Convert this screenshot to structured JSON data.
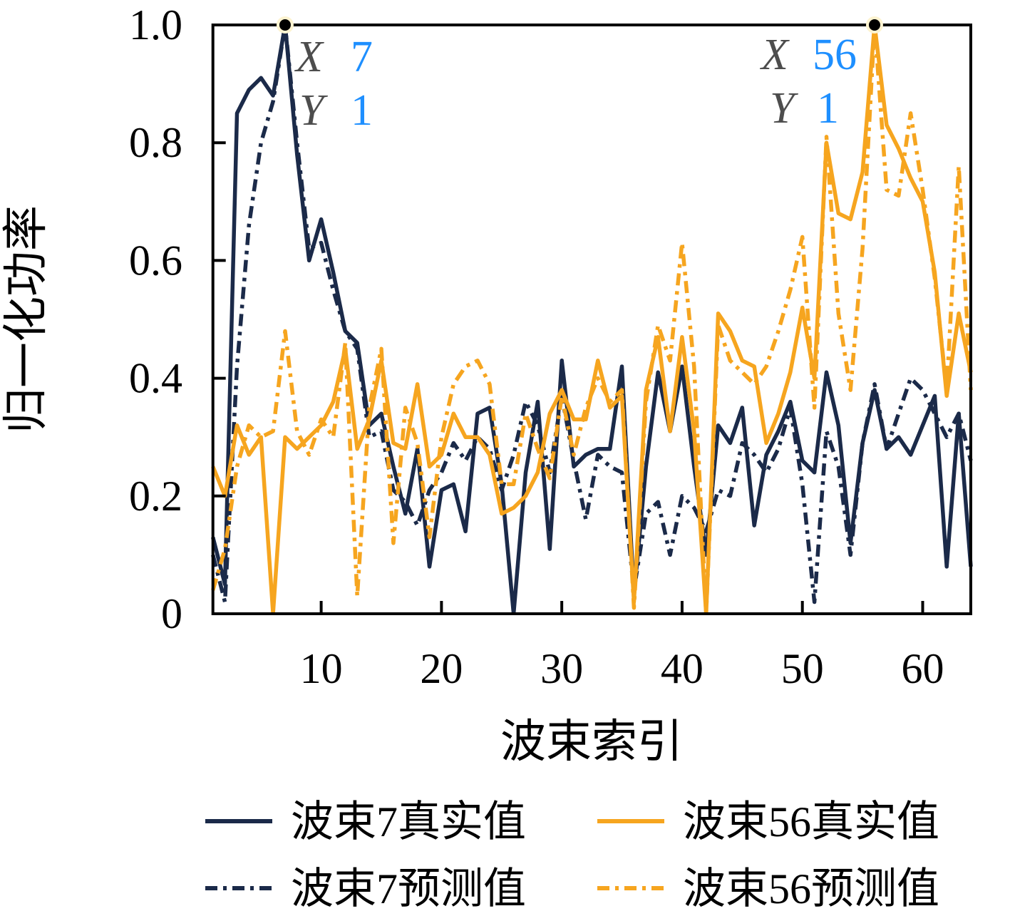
{
  "figure": {
    "background": "#ffffff",
    "colors": {
      "beam7": "#1b2a49",
      "beam56": "#f6a51f",
      "axis": "#000000",
      "datatip_letter": "#4d4d4d",
      "datatip_value": "#1e8fff",
      "marker_fill": "#000000",
      "marker_halo": "#fdf3d0"
    }
  },
  "chart_data": {
    "type": "line",
    "title": "",
    "xlabel": "波束索引",
    "ylabel": "归一化功率",
    "xlim": [
      1,
      64
    ],
    "ylim": [
      0,
      1
    ],
    "xticks": [
      10,
      20,
      30,
      40,
      50,
      60
    ],
    "yticks": [
      0,
      0.2,
      0.4,
      0.6,
      0.8,
      1.0
    ],
    "ytick_labels": [
      "0",
      "0.2",
      "0.4",
      "0.6",
      "0.8",
      "1.0"
    ],
    "grid": false,
    "legend_position": "below-two-columns",
    "x": [
      1,
      2,
      3,
      4,
      5,
      6,
      7,
      8,
      9,
      10,
      11,
      12,
      13,
      14,
      15,
      16,
      17,
      18,
      19,
      20,
      21,
      22,
      23,
      24,
      25,
      26,
      27,
      28,
      29,
      30,
      31,
      32,
      33,
      34,
      35,
      36,
      37,
      38,
      39,
      40,
      41,
      42,
      43,
      44,
      45,
      46,
      47,
      48,
      49,
      50,
      51,
      52,
      53,
      54,
      55,
      56,
      57,
      58,
      59,
      60,
      61,
      62,
      63,
      64
    ],
    "series": [
      {
        "name": "波束7真实值",
        "color": "#1b2a49",
        "style": "solid",
        "values": [
          0.13,
          0.05,
          0.85,
          0.89,
          0.91,
          0.88,
          1.0,
          0.78,
          0.6,
          0.67,
          0.58,
          0.48,
          0.46,
          0.32,
          0.34,
          0.25,
          0.17,
          0.28,
          0.08,
          0.21,
          0.22,
          0.14,
          0.34,
          0.35,
          0.22,
          0.0,
          0.24,
          0.36,
          0.11,
          0.43,
          0.25,
          0.27,
          0.28,
          0.28,
          0.42,
          0.03,
          0.25,
          0.41,
          0.31,
          0.42,
          0.25,
          0.1,
          0.32,
          0.29,
          0.35,
          0.15,
          0.27,
          0.31,
          0.36,
          0.26,
          0.24,
          0.41,
          0.32,
          0.12,
          0.29,
          0.38,
          0.28,
          0.3,
          0.27,
          0.32,
          0.37,
          0.08,
          0.34,
          0.08
        ]
      },
      {
        "name": "波束7预测值",
        "color": "#1b2a49",
        "style": "dashdot",
        "values": [
          0.1,
          0.02,
          0.42,
          0.66,
          0.8,
          0.87,
          1.0,
          0.8,
          0.62,
          0.63,
          0.55,
          0.48,
          0.45,
          0.3,
          0.31,
          0.21,
          0.19,
          0.15,
          0.21,
          0.24,
          0.29,
          0.26,
          0.3,
          0.28,
          0.21,
          0.27,
          0.36,
          0.32,
          0.24,
          0.37,
          0.26,
          0.16,
          0.27,
          0.25,
          0.24,
          0.04,
          0.17,
          0.19,
          0.1,
          0.2,
          0.18,
          0.14,
          0.21,
          0.2,
          0.29,
          0.27,
          0.24,
          0.28,
          0.35,
          0.22,
          0.02,
          0.31,
          0.25,
          0.1,
          0.29,
          0.39,
          0.28,
          0.34,
          0.4,
          0.38,
          0.34,
          0.3,
          0.34,
          0.26
        ]
      },
      {
        "name": "波束56真实值",
        "color": "#f6a51f",
        "style": "solid",
        "values": [
          0.25,
          0.2,
          0.32,
          0.27,
          0.3,
          0.0,
          0.3,
          0.28,
          0.3,
          0.32,
          0.36,
          0.45,
          0.28,
          0.33,
          0.43,
          0.29,
          0.28,
          0.39,
          0.25,
          0.27,
          0.34,
          0.3,
          0.3,
          0.27,
          0.17,
          0.18,
          0.2,
          0.24,
          0.34,
          0.38,
          0.33,
          0.33,
          0.43,
          0.35,
          0.37,
          0.02,
          0.38,
          0.47,
          0.31,
          0.47,
          0.31,
          0.0,
          0.51,
          0.48,
          0.43,
          0.42,
          0.29,
          0.34,
          0.41,
          0.52,
          0.4,
          0.8,
          0.68,
          0.67,
          0.75,
          1.0,
          0.83,
          0.79,
          0.74,
          0.7,
          0.58,
          0.37,
          0.51,
          0.41
        ]
      },
      {
        "name": "波束56预测值",
        "color": "#f6a51f",
        "style": "dashdot",
        "values": [
          0.04,
          0.11,
          0.25,
          0.32,
          0.3,
          0.31,
          0.48,
          0.31,
          0.27,
          0.33,
          0.3,
          0.46,
          0.03,
          0.35,
          0.45,
          0.12,
          0.35,
          0.29,
          0.13,
          0.3,
          0.39,
          0.42,
          0.43,
          0.39,
          0.22,
          0.22,
          0.34,
          0.28,
          0.23,
          0.37,
          0.27,
          0.35,
          0.4,
          0.36,
          0.38,
          0.01,
          0.36,
          0.49,
          0.43,
          0.63,
          0.42,
          0.0,
          0.49,
          0.43,
          0.41,
          0.39,
          0.42,
          0.48,
          0.55,
          0.64,
          0.35,
          0.81,
          0.51,
          0.38,
          0.62,
          1.0,
          0.72,
          0.71,
          0.85,
          0.72,
          0.57,
          0.38,
          0.76,
          0.38
        ]
      }
    ],
    "markers": [
      {
        "x": 7,
        "y": 1
      },
      {
        "x": 56,
        "y": 1
      }
    ],
    "datatips": [
      {
        "x_label": "X",
        "x_value": "7",
        "y_label": "Y",
        "y_value": "1"
      },
      {
        "x_label": "X",
        "x_value": "56",
        "y_label": "Y",
        "y_value": "1"
      }
    ]
  }
}
